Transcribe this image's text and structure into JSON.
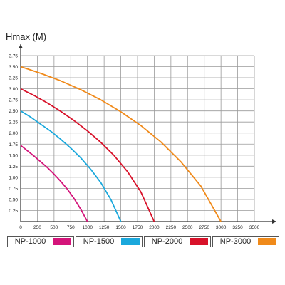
{
  "chart_data": {
    "type": "line",
    "title": "",
    "ylabel": "Hmax (M)",
    "xlabel": "",
    "xlim": [
      0,
      3500
    ],
    "ylim": [
      0,
      3.75
    ],
    "x_ticks": [
      0,
      250,
      500,
      750,
      1000,
      1250,
      1500,
      1750,
      2000,
      2250,
      2500,
      2750,
      3000,
      3250,
      3500
    ],
    "y_ticks": [
      "0.25",
      "0.50",
      "0.75",
      "1.00",
      "1.25",
      "1.50",
      "1.75",
      "2.00",
      "2.25",
      "2.50",
      "2.75",
      "3.00",
      "3.25",
      "3.50",
      "3.75"
    ],
    "y_tick_values": [
      0.25,
      0.5,
      0.75,
      1.0,
      1.25,
      1.5,
      1.75,
      2.0,
      2.25,
      2.5,
      2.75,
      3.0,
      3.25,
      3.5,
      3.75
    ],
    "grid": true,
    "legend_position": "bottom",
    "series": [
      {
        "name": "NP-1000",
        "color": "#d4147a",
        "x": [
          0,
          100,
          200,
          300,
          400,
          500,
          600,
          700,
          800,
          900,
          1000
        ],
        "y": [
          1.72,
          1.6,
          1.48,
          1.35,
          1.22,
          1.07,
          0.91,
          0.73,
          0.52,
          0.28,
          0.0
        ]
      },
      {
        "name": "NP-1500",
        "color": "#1ba8dc",
        "x": [
          0,
          150,
          300,
          450,
          600,
          750,
          900,
          1050,
          1200,
          1350,
          1500
        ],
        "y": [
          2.5,
          2.36,
          2.2,
          2.04,
          1.86,
          1.66,
          1.44,
          1.18,
          0.88,
          0.5,
          0.0
        ]
      },
      {
        "name": "NP-2000",
        "color": "#d8122a",
        "x": [
          0,
          200,
          400,
          600,
          800,
          1000,
          1200,
          1400,
          1600,
          1800,
          2000
        ],
        "y": [
          3.0,
          2.85,
          2.68,
          2.49,
          2.28,
          2.05,
          1.79,
          1.49,
          1.13,
          0.67,
          0.0
        ]
      },
      {
        "name": "NP-3000",
        "color": "#f08a1a",
        "x": [
          0,
          300,
          600,
          900,
          1200,
          1500,
          1800,
          2100,
          2400,
          2700,
          3000
        ],
        "y": [
          3.5,
          3.35,
          3.18,
          2.98,
          2.75,
          2.48,
          2.17,
          1.8,
          1.35,
          0.8,
          0.0
        ]
      }
    ]
  }
}
